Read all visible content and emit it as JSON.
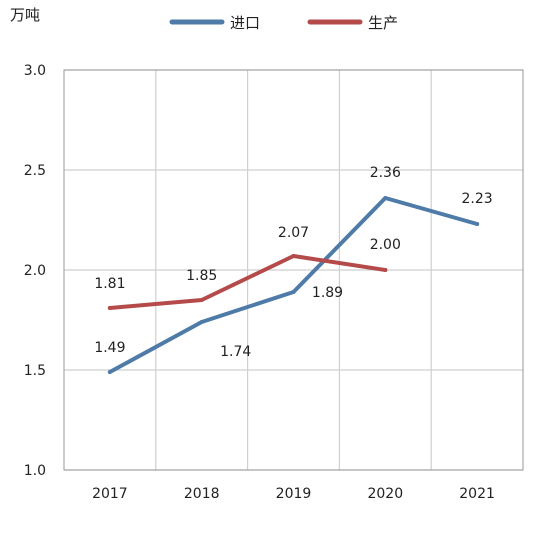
{
  "chart_data": {
    "type": "line",
    "categories": [
      "2017",
      "2018",
      "2019",
      "2020",
      "2021"
    ],
    "series": [
      {
        "name": "进口",
        "color": "#4F7BA8",
        "values": [
          1.49,
          1.74,
          1.89,
          2.36,
          2.23
        ],
        "labels": [
          "1.49",
          "1.74",
          "1.89",
          "2.36",
          "2.23"
        ]
      },
      {
        "name": "生产",
        "color": "#B54A4A",
        "values": [
          1.81,
          1.85,
          2.07,
          2.0,
          null
        ],
        "labels": [
          "1.81",
          "1.85",
          "2.07",
          "2.00",
          null
        ]
      }
    ],
    "ylabel": "万吨",
    "ylim": [
      1.0,
      3.0
    ],
    "yticks": [
      "1.0",
      "1.5",
      "2.0",
      "2.5",
      "3.0"
    ],
    "grid": true,
    "legend": "top-center"
  }
}
